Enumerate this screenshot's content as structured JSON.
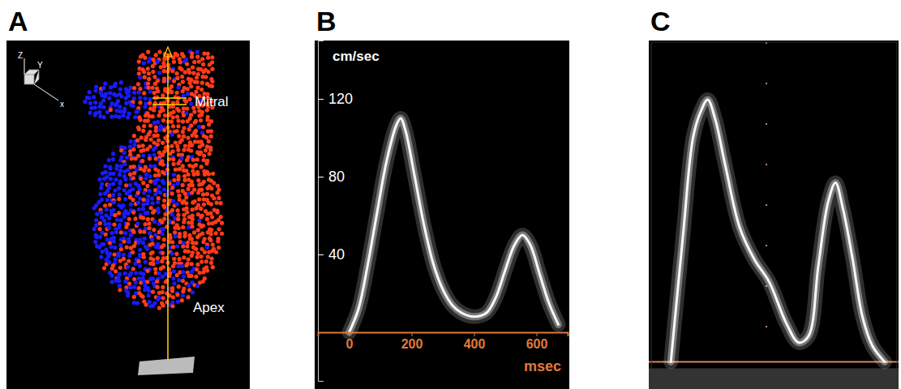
{
  "chart_data": [
    {
      "type": "diagram",
      "panel": "A",
      "annotations": [
        "Mitral",
        "Apex"
      ],
      "axis_labels": [
        "Z",
        "Y",
        "x"
      ]
    },
    {
      "type": "line",
      "panel": "B",
      "ylabel": "cm/sec",
      "xlabel": "msec",
      "color": "#ffffff",
      "x": [
        0,
        30,
        60,
        90,
        120,
        150,
        165,
        180,
        210,
        240,
        270,
        300,
        330,
        360,
        400,
        440,
        470,
        500,
        530,
        555,
        580,
        610,
        640,
        670
      ],
      "values": [
        0,
        12,
        35,
        62,
        88,
        106,
        110,
        104,
        80,
        55,
        35,
        22,
        14,
        10,
        8,
        10,
        18,
        32,
        45,
        50,
        45,
        30,
        15,
        4
      ],
      "xlim": [
        -100,
        700
      ],
      "ylim": [
        -25,
        150
      ],
      "xticks": [
        0,
        200,
        400,
        600
      ],
      "yticks": [
        40,
        80,
        120
      ]
    },
    {
      "type": "line",
      "panel": "C",
      "color": "#ffffff",
      "x": [
        8,
        13,
        17,
        20,
        23,
        26,
        30,
        36,
        42,
        48,
        55,
        60,
        64,
        68,
        72,
        75,
        78,
        82,
        86,
        90,
        95
      ],
      "values": [
        0,
        40,
        70,
        78,
        82,
        76,
        62,
        42,
        32,
        25,
        12,
        6,
        8,
        30,
        50,
        56,
        48,
        32,
        14,
        5,
        0
      ],
      "xlim": [
        0,
        100
      ],
      "ylim": [
        -8,
        100
      ],
      "tick_labels": false
    }
  ]
}
